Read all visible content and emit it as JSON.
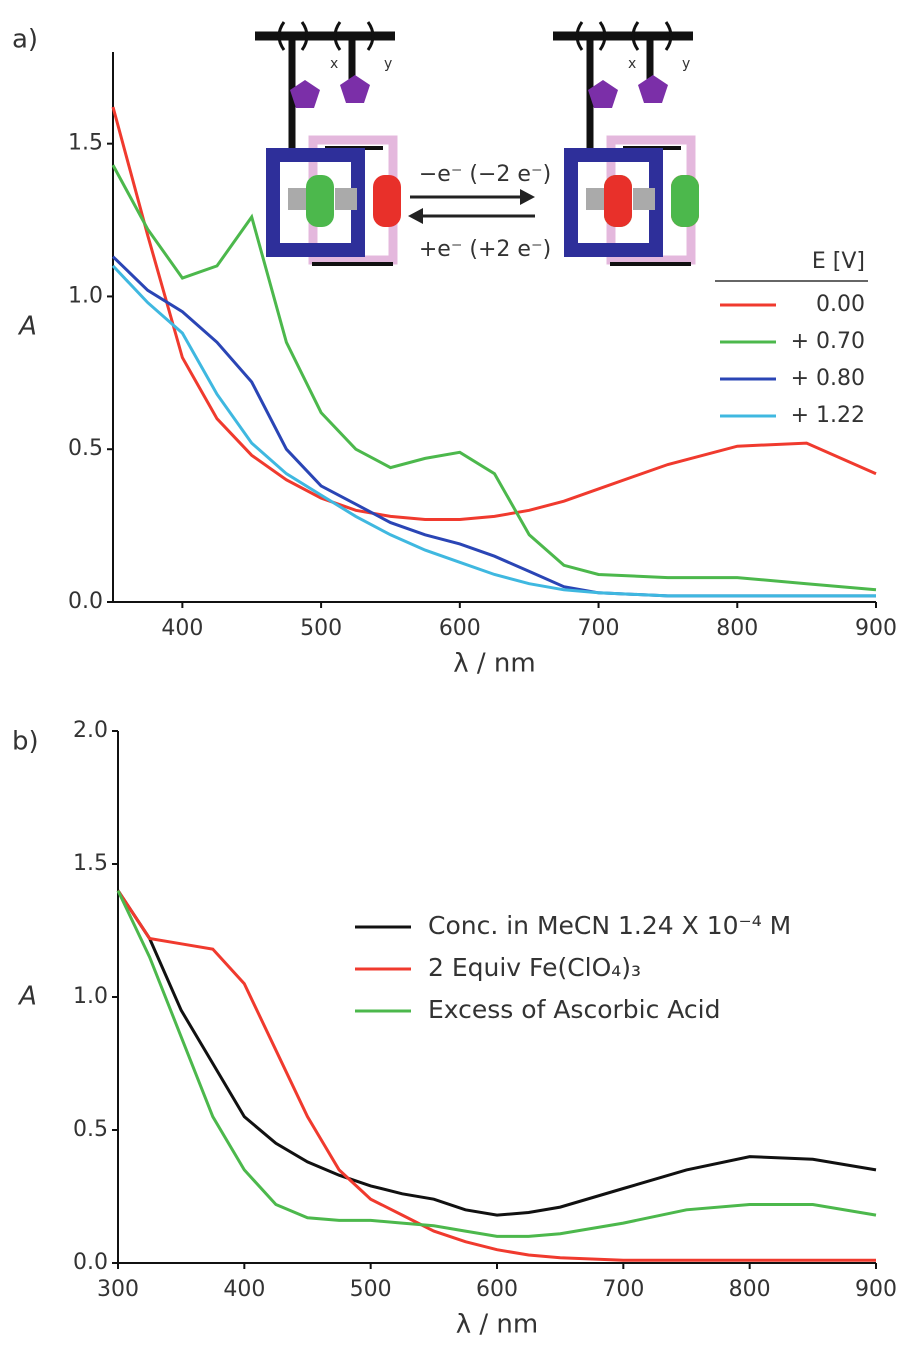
{
  "chart_data": [
    {
      "type": "line",
      "panel_label": "a)",
      "xlabel": "λ / nm",
      "ylabel": "A",
      "x": [
        350,
        375,
        400,
        425,
        450,
        475,
        500,
        525,
        550,
        575,
        600,
        625,
        650,
        675,
        700,
        750,
        800,
        850,
        900
      ],
      "series": [
        {
          "name": "0.00",
          "color": "#f03a2e",
          "values": [
            1.62,
            1.2,
            0.8,
            0.6,
            0.48,
            0.4,
            0.34,
            0.3,
            0.28,
            0.27,
            0.27,
            0.28,
            0.3,
            0.33,
            0.37,
            0.45,
            0.51,
            0.52,
            0.42
          ]
        },
        {
          "name": "+ 0.70",
          "color": "#4cb84c",
          "values": [
            1.43,
            1.22,
            1.06,
            1.1,
            1.26,
            0.85,
            0.62,
            0.5,
            0.44,
            0.47,
            0.49,
            0.42,
            0.22,
            0.12,
            0.09,
            0.08,
            0.08,
            0.06,
            0.04
          ]
        },
        {
          "name": "+ 0.80",
          "color": "#2a45b5",
          "values": [
            1.13,
            1.02,
            0.95,
            0.85,
            0.72,
            0.5,
            0.38,
            0.32,
            0.26,
            0.22,
            0.19,
            0.15,
            0.1,
            0.05,
            0.03,
            0.02,
            0.02,
            0.02,
            0.02
          ]
        },
        {
          "name": "+ 1.22",
          "color": "#3fb8e0",
          "values": [
            1.1,
            0.98,
            0.88,
            0.68,
            0.52,
            0.42,
            0.35,
            0.28,
            0.22,
            0.17,
            0.13,
            0.09,
            0.06,
            0.04,
            0.03,
            0.02,
            0.02,
            0.02,
            0.02
          ]
        }
      ],
      "legend": "right",
      "legend_title": "E [V]",
      "xlim": [
        350,
        900
      ],
      "xticks": [
        400,
        500,
        600,
        700,
        800,
        900
      ],
      "ylim": [
        0,
        1.8
      ],
      "yticks": [
        {
          "value": 0,
          "label": "0.0"
        },
        0.5,
        {
          "value": 1,
          "label": "1.0"
        },
        1.5
      ],
      "annotations": {
        "subscripts": [
          "x",
          "y",
          "x",
          "y"
        ],
        "forward": "−e⁻ (−2 e⁻)",
        "backward": "+e⁻ (+2 e⁻)"
      }
    },
    {
      "type": "line",
      "panel_label": "b)",
      "xlabel": "λ / nm",
      "ylabel": "A",
      "x": [
        300,
        325,
        350,
        375,
        400,
        425,
        450,
        475,
        500,
        525,
        550,
        575,
        600,
        625,
        650,
        700,
        750,
        800,
        850,
        900
      ],
      "series": [
        {
          "name": "Conc. in MeCN 1.24 X 10⁻⁴ M",
          "color": "#111111",
          "values": [
            1.4,
            1.22,
            0.95,
            0.75,
            0.55,
            0.45,
            0.38,
            0.33,
            0.29,
            0.26,
            0.24,
            0.2,
            0.18,
            0.19,
            0.21,
            0.28,
            0.35,
            0.4,
            0.39,
            0.35
          ]
        },
        {
          "name": "2 Equiv Fe(ClO₄)₃",
          "color": "#f03a2e",
          "values": [
            1.4,
            1.22,
            1.2,
            1.18,
            1.05,
            0.8,
            0.55,
            0.35,
            0.24,
            0.18,
            0.12,
            0.08,
            0.05,
            0.03,
            0.02,
            0.01,
            0.01,
            0.01,
            0.01,
            0.01
          ]
        },
        {
          "name": "Excess of Ascorbic Acid",
          "color": "#4cb84c",
          "values": [
            1.4,
            1.15,
            0.85,
            0.55,
            0.35,
            0.22,
            0.17,
            0.16,
            0.16,
            0.15,
            0.14,
            0.12,
            0.1,
            0.1,
            0.11,
            0.15,
            0.2,
            0.22,
            0.22,
            0.18
          ]
        }
      ],
      "legend": "center",
      "xlim": [
        300,
        900
      ],
      "xticks": [
        300,
        400,
        500,
        600,
        700,
        800,
        900
      ],
      "ylim": [
        0,
        2
      ],
      "yticks": [
        {
          "value": 0,
          "label": "0.0"
        },
        0.5,
        {
          "value": 1,
          "label": "1.0"
        },
        1.5,
        {
          "value": 2,
          "label": "2.0"
        }
      ]
    }
  ]
}
